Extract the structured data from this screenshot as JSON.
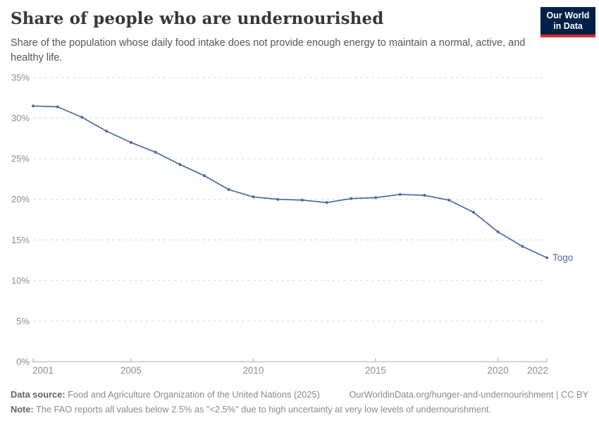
{
  "header": {
    "title": "Share of people who are undernourished",
    "subtitle": "Share of the population whose daily food intake does not provide enough energy to maintain a normal, active, and healthy life.",
    "logo": {
      "line1": "Our World",
      "line2": "in Data",
      "bg_color": "#002147",
      "accent_color": "#D7282F"
    }
  },
  "chart_data": {
    "type": "line",
    "title": "Share of people who are undernourished",
    "x": [
      2001,
      2002,
      2003,
      2004,
      2005,
      2006,
      2007,
      2008,
      2009,
      2010,
      2011,
      2012,
      2013,
      2014,
      2015,
      2016,
      2017,
      2018,
      2019,
      2020,
      2021,
      2022
    ],
    "series": [
      {
        "name": "Togo",
        "color": "#4B6A9F",
        "values": [
          31.5,
          31.4,
          30.1,
          28.4,
          27.0,
          25.8,
          24.3,
          22.9,
          21.2,
          20.3,
          20.0,
          19.9,
          19.6,
          20.1,
          20.2,
          20.6,
          20.5,
          19.9,
          18.4,
          16.0,
          14.2,
          12.8
        ]
      }
    ],
    "xlabel": "",
    "ylabel": "",
    "ylim": [
      0,
      35
    ],
    "ytick_step": 5,
    "ytick_suffix": "%",
    "xticks": [
      2001,
      2005,
      2010,
      2015,
      2020,
      2022
    ],
    "grid": "horizontal-dashed",
    "legend_position": "end-of-line-label",
    "axis_color": "#a9a9a9",
    "grid_color": "#dcdcdc",
    "tick_label_color": "#8d8d8d"
  },
  "footer": {
    "datasource_label": "Data source:",
    "datasource_text": " Food and Agriculture Organization of the United Nations (2025)",
    "url_text": "OurWorldinData.org/hunger-and-undernourishment | CC BY",
    "note_label": "Note:",
    "note_text": " The FAO reports all values below 2.5% as \"<2.5%\" due to high uncertainty at very low levels of undernourishment."
  }
}
